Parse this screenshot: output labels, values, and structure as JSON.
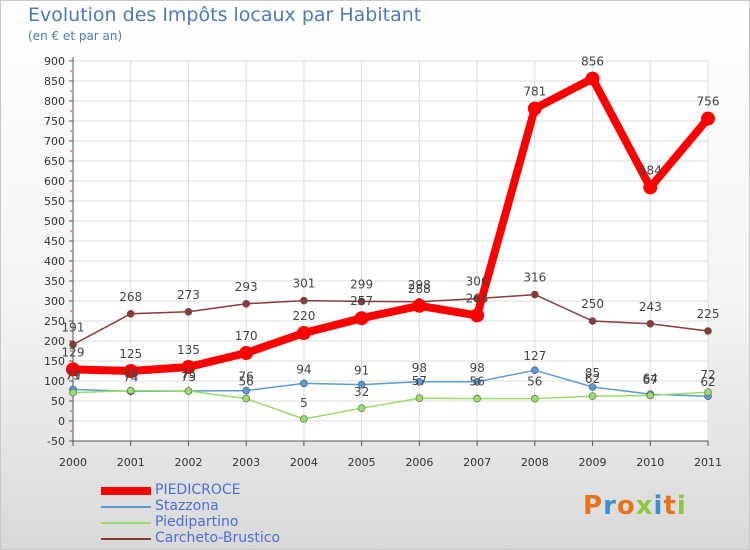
{
  "header": {
    "title": "Evolution des Impôts locaux par Habitant",
    "subtitle": "(en € et par an)"
  },
  "logo": {
    "text": "Proxiti",
    "colors": [
      "#e8731d",
      "#3b8fd1",
      "#e8731d",
      "#8dc63f",
      "#3b8fd1",
      "#e8731d",
      "#8dc63f"
    ]
  },
  "chart_data": {
    "type": "line",
    "x": [
      "2000",
      "2001",
      "2002",
      "2003",
      "2004",
      "2005",
      "2006",
      "2007",
      "2008",
      "2009",
      "2010",
      "2011"
    ],
    "ylim": [
      -50,
      900
    ],
    "yticks": [
      "-50",
      "0",
      "50",
      "100",
      "150",
      "200",
      "250",
      "300",
      "350",
      "400",
      "450",
      "500",
      "550",
      "600",
      "650",
      "700",
      "750",
      "800",
      "850",
      "900"
    ],
    "grid": true,
    "legend_position": "bottom-left",
    "series": [
      {
        "name": "PIEDICROCE",
        "color": "#ff0000",
        "values": [
          129,
          125,
          135,
          170,
          220,
          257,
          288,
          264,
          781,
          856,
          584,
          756
        ],
        "labels": [
          "129",
          "125",
          "135",
          "170",
          "220",
          "257",
          "288",
          "264",
          "781",
          "856",
          "584",
          "756"
        ]
      },
      {
        "name": "Stazzona",
        "color": "#5b9bd5",
        "values": [
          79,
          74,
          75,
          76,
          94,
          91,
          98,
          98,
          127,
          85,
          67,
          62
        ],
        "labels": [
          "79",
          "74",
          "75",
          "76",
          "94",
          "91",
          "98",
          "98",
          "127",
          "85",
          "67",
          "62"
        ]
      },
      {
        "name": "Piedipartino",
        "color": "#99dd66",
        "values": [
          71,
          76,
          75,
          56,
          5,
          32,
          57,
          56,
          56,
          62,
          64,
          72
        ],
        "labels": [
          "71",
          "76",
          "75",
          "56",
          "5",
          "32",
          "57",
          "56",
          "56",
          "62",
          "64",
          "72"
        ]
      },
      {
        "name": "Carcheto-Brustico",
        "color": "#8b3a3a",
        "values": [
          191,
          268,
          273,
          293,
          301,
          299,
          298,
          306,
          316,
          250,
          243,
          225
        ],
        "labels": [
          "191",
          "268",
          "273",
          "293",
          "301",
          "299",
          "298",
          "306",
          "316",
          "250",
          "243",
          "225"
        ]
      }
    ]
  }
}
